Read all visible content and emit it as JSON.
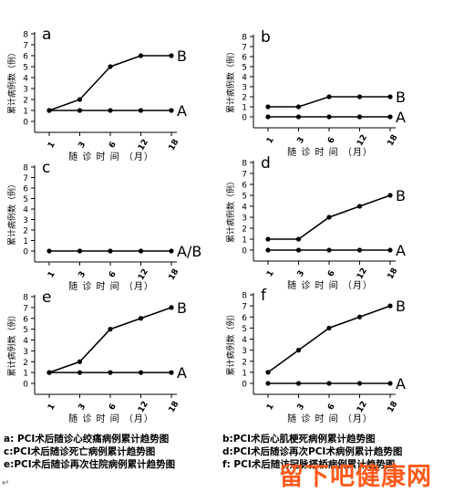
{
  "chart_data": [
    {
      "type": "line",
      "panel_letter": "a",
      "xlabel": "随 诊 时 间 （月）",
      "ylabel": "累计病例数（例）",
      "categories": [
        "1",
        "3",
        "6",
        "12",
        "18"
      ],
      "ylim": [
        0,
        8
      ],
      "yticks": [
        0,
        1,
        2,
        3,
        4,
        5,
        6,
        7,
        8
      ],
      "series": [
        {
          "name": "B",
          "values": [
            1,
            2,
            5,
            6,
            6
          ]
        },
        {
          "name": "A",
          "values": [
            1,
            1,
            1,
            1,
            1
          ]
        }
      ]
    },
    {
      "type": "line",
      "panel_letter": "b",
      "xlabel": "随 诊 时 间 （月）",
      "ylabel": "累计病例数（例）",
      "categories": [
        "1",
        "3",
        "6",
        "12",
        "18"
      ],
      "ylim": [
        0,
        8
      ],
      "yticks": [
        0,
        1,
        2,
        3,
        4,
        5,
        6,
        7,
        8
      ],
      "series": [
        {
          "name": "B",
          "values": [
            1,
            1,
            2,
            2,
            2
          ]
        },
        {
          "name": "A",
          "values": [
            0,
            0,
            0,
            0,
            0
          ]
        }
      ]
    },
    {
      "type": "line",
      "panel_letter": "c",
      "xlabel": "随 诊 时 间 （月）",
      "ylabel": "累计病例数（例）",
      "categories": [
        "1",
        "3",
        "6",
        "12",
        "18"
      ],
      "ylim": [
        0,
        8
      ],
      "yticks": [
        0,
        1,
        2,
        3,
        4,
        5,
        6,
        7,
        8
      ],
      "series": [
        {
          "name": "A/B",
          "values": [
            0,
            0,
            0,
            0,
            0
          ]
        }
      ]
    },
    {
      "type": "line",
      "panel_letter": "d",
      "xlabel": "随 诊 时 间 （月）",
      "ylabel": "累计病例数（例）",
      "categories": [
        "1",
        "3",
        "6",
        "12",
        "18"
      ],
      "ylim": [
        0,
        8
      ],
      "yticks": [
        0,
        1,
        2,
        3,
        4,
        5,
        6,
        7,
        8
      ],
      "series": [
        {
          "name": "B",
          "values": [
            1,
            1,
            3,
            4,
            5
          ]
        },
        {
          "name": "A",
          "values": [
            0,
            0,
            0,
            0,
            0
          ]
        }
      ]
    },
    {
      "type": "line",
      "panel_letter": "e",
      "xlabel": "随 诊 时 间 （月）",
      "ylabel": "累计病例数（例）",
      "categories": [
        "1",
        "3",
        "6",
        "12",
        "18"
      ],
      "ylim": [
        0,
        8
      ],
      "yticks": [
        0,
        1,
        2,
        3,
        4,
        5,
        6,
        7,
        8
      ],
      "series": [
        {
          "name": "B",
          "values": [
            1,
            2,
            5,
            6,
            7
          ]
        },
        {
          "name": "A",
          "values": [
            1,
            1,
            1,
            1,
            1
          ]
        }
      ]
    },
    {
      "type": "line",
      "panel_letter": "f",
      "xlabel": "随 诊 时 间 （月）",
      "ylabel": "累计病例数（例）",
      "categories": [
        "1",
        "3",
        "6",
        "12",
        "18"
      ],
      "ylim": [
        0,
        8
      ],
      "yticks": [
        0,
        1,
        2,
        3,
        4,
        5,
        6,
        7,
        8
      ],
      "series": [
        {
          "name": "B",
          "values": [
            1,
            3,
            5,
            6,
            7
          ]
        },
        {
          "name": "A",
          "values": [
            0,
            0,
            0,
            0,
            0
          ]
        }
      ]
    }
  ],
  "captions": {
    "a": "a: PCI术后随诊心绞痛病例累计趋势图",
    "b": "b:PCI术后心肌梗死病例累计趋势图",
    "c": "c:PCI术后随诊死亡病例累计趋势图",
    "d": "d:PCI术后随诊再次PCI术病例累计趋势图",
    "e": "e:PCI术后随诊再次住院病例累计趋势图",
    "f": "f: PCI术后随访冠脉搭桥病例累计趋势图"
  },
  "watermark": "留下吧健康网",
  "colors": {
    "line": "#000000",
    "watermark": "#ff5a1a"
  }
}
